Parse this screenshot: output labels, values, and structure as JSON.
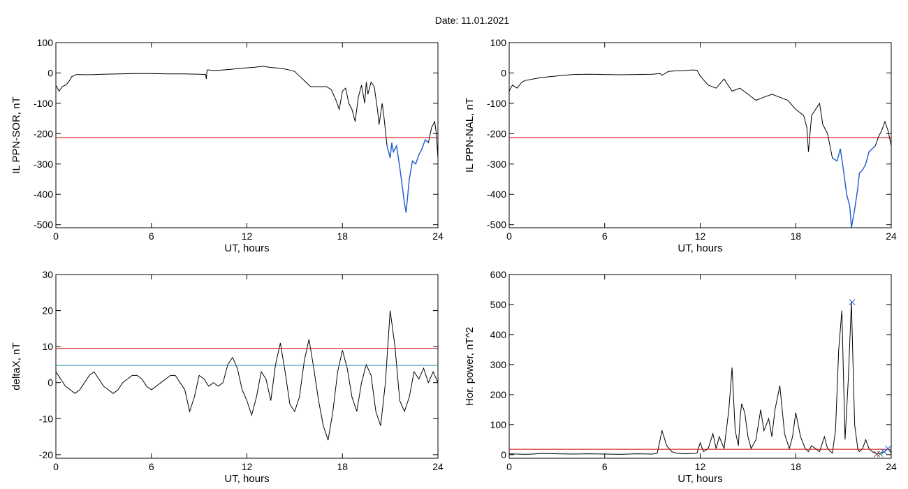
{
  "page": {
    "title": "Date:  11.01.2021"
  },
  "chart_data": [
    {
      "id": "sor",
      "type": "line",
      "xlabel": "UT, hours",
      "ylabel": "IL PPN-SOR, nT",
      "xlim": [
        0,
        24
      ],
      "ylim": [
        -510,
        100
      ],
      "xticks": [
        0,
        6,
        12,
        18,
        24
      ],
      "yticks": [
        100,
        0,
        -100,
        -200,
        -300,
        -400,
        -500
      ],
      "threshold_lines": [
        {
          "y": -213,
          "color": "#cc0000"
        }
      ],
      "highlight_color": "#1f5fd6",
      "highlight_below": -213,
      "series": [
        {
          "color": "#000000",
          "x": [
            0.0,
            0.1,
            0.2,
            0.4,
            0.6,
            0.8,
            1.0,
            1.3,
            2.0,
            3.0,
            4.0,
            5.0,
            6.0,
            7.0,
            8.0,
            9.0,
            9.4,
            9.45,
            9.5,
            9.6,
            10.0,
            10.5,
            11.0,
            11.5,
            12.0,
            12.5,
            13.0,
            13.5,
            14.0,
            14.5,
            15.0,
            15.3,
            15.6,
            16.0,
            16.5,
            17.0,
            17.3,
            17.6,
            17.8,
            18.0,
            18.2,
            18.4,
            18.6,
            18.8,
            19.0,
            19.2,
            19.4,
            19.5,
            19.6,
            19.8,
            20.0,
            20.2,
            20.3,
            20.5,
            20.6,
            20.8,
            21.0,
            21.1,
            21.2,
            21.4,
            21.6,
            21.8,
            21.9,
            22.0,
            22.2,
            22.4,
            22.6,
            22.8,
            23.0,
            23.2,
            23.4,
            23.6,
            23.8,
            23.9,
            24.0
          ],
          "y": [
            -40,
            -50,
            -60,
            -45,
            -40,
            -30,
            -12,
            -5,
            -6,
            -4,
            -3,
            -2,
            -2,
            -3,
            -3,
            -4,
            -5,
            -20,
            10,
            10,
            8,
            10,
            12,
            15,
            17,
            19,
            22,
            18,
            16,
            12,
            5,
            -10,
            -25,
            -45,
            -45,
            -45,
            -55,
            -90,
            -120,
            -60,
            -50,
            -100,
            -120,
            -160,
            -80,
            -40,
            -100,
            -30,
            -70,
            -30,
            -45,
            -120,
            -170,
            -100,
            -140,
            -240,
            -280,
            -230,
            -260,
            -240,
            -310,
            -390,
            -430,
            -460,
            -350,
            -290,
            -300,
            -270,
            -250,
            -220,
            -230,
            -180,
            -160,
            -200,
            -280
          ]
        }
      ]
    },
    {
      "id": "nal",
      "type": "line",
      "xlabel": "UT, hours",
      "ylabel": "IL PPN-NAL, nT",
      "xlim": [
        0,
        24
      ],
      "ylim": [
        -510,
        100
      ],
      "xticks": [
        0,
        6,
        12,
        18,
        24
      ],
      "yticks": [
        100,
        0,
        -100,
        -200,
        -300,
        -400,
        -500
      ],
      "threshold_lines": [
        {
          "y": -213,
          "color": "#cc0000"
        }
      ],
      "highlight_color": "#1f5fd6",
      "highlight_below": -213,
      "series": [
        {
          "color": "#000000",
          "x": [
            0.0,
            0.2,
            0.5,
            0.8,
            1.0,
            1.5,
            2.0,
            3.0,
            4.0,
            5.0,
            6.0,
            7.0,
            8.0,
            9.0,
            9.5,
            9.6,
            10.0,
            10.5,
            11.0,
            11.5,
            11.8,
            12.0,
            12.5,
            13.0,
            13.5,
            14.0,
            14.5,
            15.0,
            15.5,
            16.0,
            16.5,
            17.0,
            17.5,
            18.0,
            18.5,
            18.7,
            18.8,
            19.0,
            19.5,
            19.7,
            19.8,
            20.0,
            20.3,
            20.6,
            20.8,
            21.0,
            21.2,
            21.4,
            21.5,
            21.7,
            21.9,
            22.0,
            22.2,
            22.4,
            22.6,
            22.8,
            23.0,
            23.2,
            23.4,
            23.6,
            23.8,
            24.0
          ],
          "y": [
            -60,
            -40,
            -50,
            -30,
            -25,
            -20,
            -15,
            -10,
            -5,
            -4,
            -5,
            -6,
            -5,
            -4,
            -2,
            -8,
            5,
            7,
            8,
            10,
            9,
            -10,
            -40,
            -50,
            -20,
            -60,
            -50,
            -70,
            -90,
            -80,
            -70,
            -80,
            -90,
            -120,
            -140,
            -180,
            -260,
            -140,
            -100,
            -170,
            -180,
            -200,
            -280,
            -290,
            -250,
            -320,
            -400,
            -440,
            -510,
            -450,
            -380,
            -330,
            -320,
            -300,
            -260,
            -250,
            -240,
            -210,
            -190,
            -160,
            -190,
            -240
          ]
        }
      ]
    },
    {
      "id": "deltax",
      "type": "line",
      "xlabel": "UT, hours",
      "ylabel": "deltaX, nT",
      "xlim": [
        0,
        24
      ],
      "ylim": [
        -21,
        30
      ],
      "xticks": [
        0,
        6,
        12,
        18,
        24
      ],
      "yticks": [
        30,
        20,
        10,
        0,
        -10,
        -20
      ],
      "threshold_lines": [
        {
          "y": 9.5,
          "color": "#cc0000"
        },
        {
          "y": 4.8,
          "color": "#1a8ca3"
        }
      ],
      "series": [
        {
          "color": "#000000",
          "x": [
            0.0,
            0.3,
            0.6,
            0.9,
            1.2,
            1.5,
            1.8,
            2.1,
            2.4,
            2.7,
            3.0,
            3.3,
            3.6,
            3.9,
            4.2,
            4.5,
            4.8,
            5.1,
            5.4,
            5.7,
            6.0,
            6.3,
            6.6,
            6.9,
            7.2,
            7.5,
            7.8,
            8.1,
            8.4,
            8.7,
            9.0,
            9.3,
            9.6,
            9.9,
            10.2,
            10.5,
            10.8,
            11.1,
            11.4,
            11.7,
            12.0,
            12.3,
            12.6,
            12.9,
            13.2,
            13.5,
            13.8,
            14.1,
            14.4,
            14.7,
            15.0,
            15.3,
            15.6,
            15.9,
            16.2,
            16.5,
            16.8,
            17.1,
            17.4,
            17.7,
            18.0,
            18.3,
            18.6,
            18.9,
            19.2,
            19.5,
            19.8,
            20.1,
            20.4,
            20.7,
            21.0,
            21.3,
            21.6,
            21.9,
            22.2,
            22.5,
            22.8,
            23.1,
            23.4,
            23.7,
            24.0
          ],
          "y": [
            3,
            1,
            -1,
            -2,
            -3,
            -2,
            0,
            2,
            3,
            1,
            -1,
            -2,
            -3,
            -2,
            0,
            1,
            2,
            2,
            1,
            -1,
            -2,
            -1,
            0,
            1,
            2,
            2,
            0,
            -2,
            -8,
            -4,
            2,
            1,
            -1,
            0,
            -1,
            0,
            5,
            7,
            4,
            -2,
            -5,
            -9,
            -4,
            3,
            1,
            -5,
            5,
            11,
            3,
            -6,
            -8,
            -4,
            6,
            12,
            4,
            -5,
            -12,
            -16,
            -8,
            3,
            9,
            4,
            -4,
            -8,
            0,
            5,
            2,
            -8,
            -12,
            0,
            20,
            10,
            -5,
            -8,
            -4,
            3,
            1,
            4,
            0,
            3,
            0
          ]
        }
      ]
    },
    {
      "id": "power",
      "type": "line",
      "xlabel": "UT, hours",
      "ylabel": "Hor. power, nT^2",
      "xlim": [
        0,
        24
      ],
      "ylim": [
        -12,
        600
      ],
      "xticks": [
        0,
        6,
        12,
        18,
        24
      ],
      "yticks": [
        600,
        500,
        400,
        300,
        200,
        100,
        0
      ],
      "threshold_lines": [
        {
          "y": 18,
          "color": "#cc0000"
        }
      ],
      "markers": [
        {
          "x": 21.55,
          "y": 508,
          "color": "#1f5fd6"
        },
        {
          "x": 23.1,
          "y": 2,
          "color": "#b03060"
        },
        {
          "x": 23.3,
          "y": 3,
          "color": "#2e8b57"
        },
        {
          "x": 23.55,
          "y": 10,
          "color": "#1f5fd6"
        },
        {
          "x": 23.8,
          "y": 20,
          "color": "#1f5fd6"
        }
      ],
      "series": [
        {
          "color": "#000000",
          "x": [
            0.0,
            0.5,
            1.0,
            1.5,
            2.0,
            3.0,
            4.0,
            5.0,
            6.0,
            7.0,
            8.0,
            9.0,
            9.3,
            9.6,
            9.9,
            10.2,
            10.5,
            11.0,
            11.5,
            11.8,
            12.0,
            12.2,
            12.5,
            12.8,
            13.0,
            13.2,
            13.5,
            13.8,
            14.0,
            14.2,
            14.4,
            14.5,
            14.6,
            14.8,
            15.0,
            15.2,
            15.5,
            15.8,
            16.0,
            16.3,
            16.5,
            16.7,
            17.0,
            17.3,
            17.6,
            17.8,
            18.0,
            18.3,
            18.6,
            18.8,
            19.0,
            19.5,
            19.8,
            20.0,
            20.3,
            20.5,
            20.7,
            20.9,
            21.1,
            21.3,
            21.5,
            21.6,
            21.7,
            21.9,
            22.0,
            22.2,
            22.4,
            22.6,
            22.8,
            23.0,
            23.2,
            23.5,
            23.8,
            24.0
          ],
          "y": [
            3,
            2,
            1,
            2,
            4,
            3,
            2,
            3,
            2,
            1,
            3,
            2,
            5,
            80,
            30,
            10,
            5,
            3,
            4,
            5,
            40,
            10,
            20,
            70,
            20,
            60,
            20,
            150,
            290,
            80,
            30,
            120,
            170,
            140,
            60,
            20,
            50,
            150,
            80,
            120,
            60,
            150,
            230,
            70,
            20,
            60,
            140,
            60,
            20,
            10,
            30,
            10,
            60,
            20,
            5,
            80,
            350,
            480,
            50,
            250,
            510,
            300,
            100,
            20,
            10,
            20,
            50,
            20,
            10,
            5,
            4,
            8,
            20,
            5
          ]
        }
      ]
    }
  ]
}
